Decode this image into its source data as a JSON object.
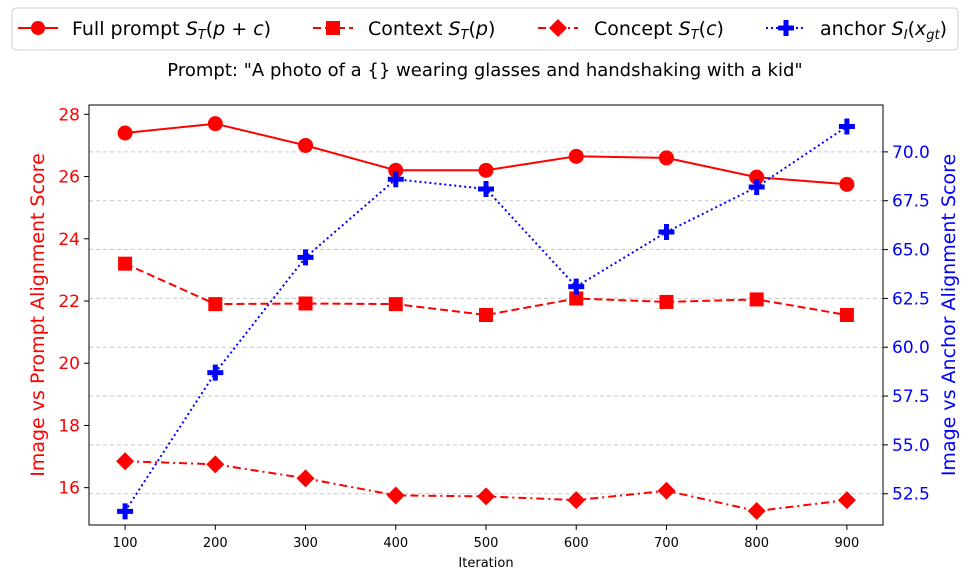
{
  "chart_data": {
    "type": "line",
    "title": "Prompt: \"A photo of a {} wearing glasses and handshaking with a kid\"",
    "xlabel": "Iteration",
    "ylabel_left": "Image vs Prompt Alignment Score",
    "ylabel_right": "Image vs Anchor Alignment Score",
    "x": [
      100,
      200,
      300,
      400,
      500,
      600,
      700,
      800,
      900
    ],
    "x_ticks": [
      "100",
      "200",
      "300",
      "400",
      "500",
      "600",
      "700",
      "800",
      "900"
    ],
    "ylim_left": [
      14.8,
      28.3
    ],
    "yticks_left": [
      "16",
      "18",
      "20",
      "22",
      "24",
      "26",
      "28"
    ],
    "ylim_right": [
      50.9,
      72.4
    ],
    "yticks_right": [
      "52.5",
      "55.0",
      "57.5",
      "60.0",
      "62.5",
      "65.0",
      "67.5",
      "70.0"
    ],
    "grid": "horizontal dashed (right axis)",
    "legend_position": "top",
    "colors": {
      "left_axis": "#ff0000",
      "right_axis": "#0000ff",
      "grid": "#c8c8c8"
    },
    "series": [
      {
        "name": "Full prompt",
        "name_math": "S_T(p + c)",
        "axis": "left",
        "color": "#ff0000",
        "marker": "circle",
        "linestyle": "solid",
        "values": [
          27.4,
          27.7,
          27.0,
          26.2,
          26.2,
          26.65,
          26.6,
          25.98,
          25.75
        ]
      },
      {
        "name": "Context",
        "name_math": "S_T(p)",
        "axis": "left",
        "color": "#ff0000",
        "marker": "square",
        "linestyle": "dashed",
        "values": [
          23.2,
          21.9,
          21.92,
          21.9,
          21.55,
          22.08,
          21.97,
          22.05,
          21.55
        ]
      },
      {
        "name": "Concept",
        "name_math": "S_T(c)",
        "axis": "left",
        "color": "#ff0000",
        "marker": "diamond",
        "linestyle": "dashdot",
        "values": [
          16.85,
          16.75,
          16.3,
          15.75,
          15.72,
          15.6,
          15.9,
          15.25,
          15.6
        ]
      },
      {
        "name": "anchor",
        "name_math": "S_I(x_gt)",
        "axis": "right",
        "color": "#0000ff",
        "marker": "plus",
        "linestyle": "dotted",
        "values": [
          51.6,
          58.7,
          64.6,
          68.6,
          68.1,
          63.1,
          65.9,
          68.2,
          71.3
        ]
      }
    ]
  }
}
